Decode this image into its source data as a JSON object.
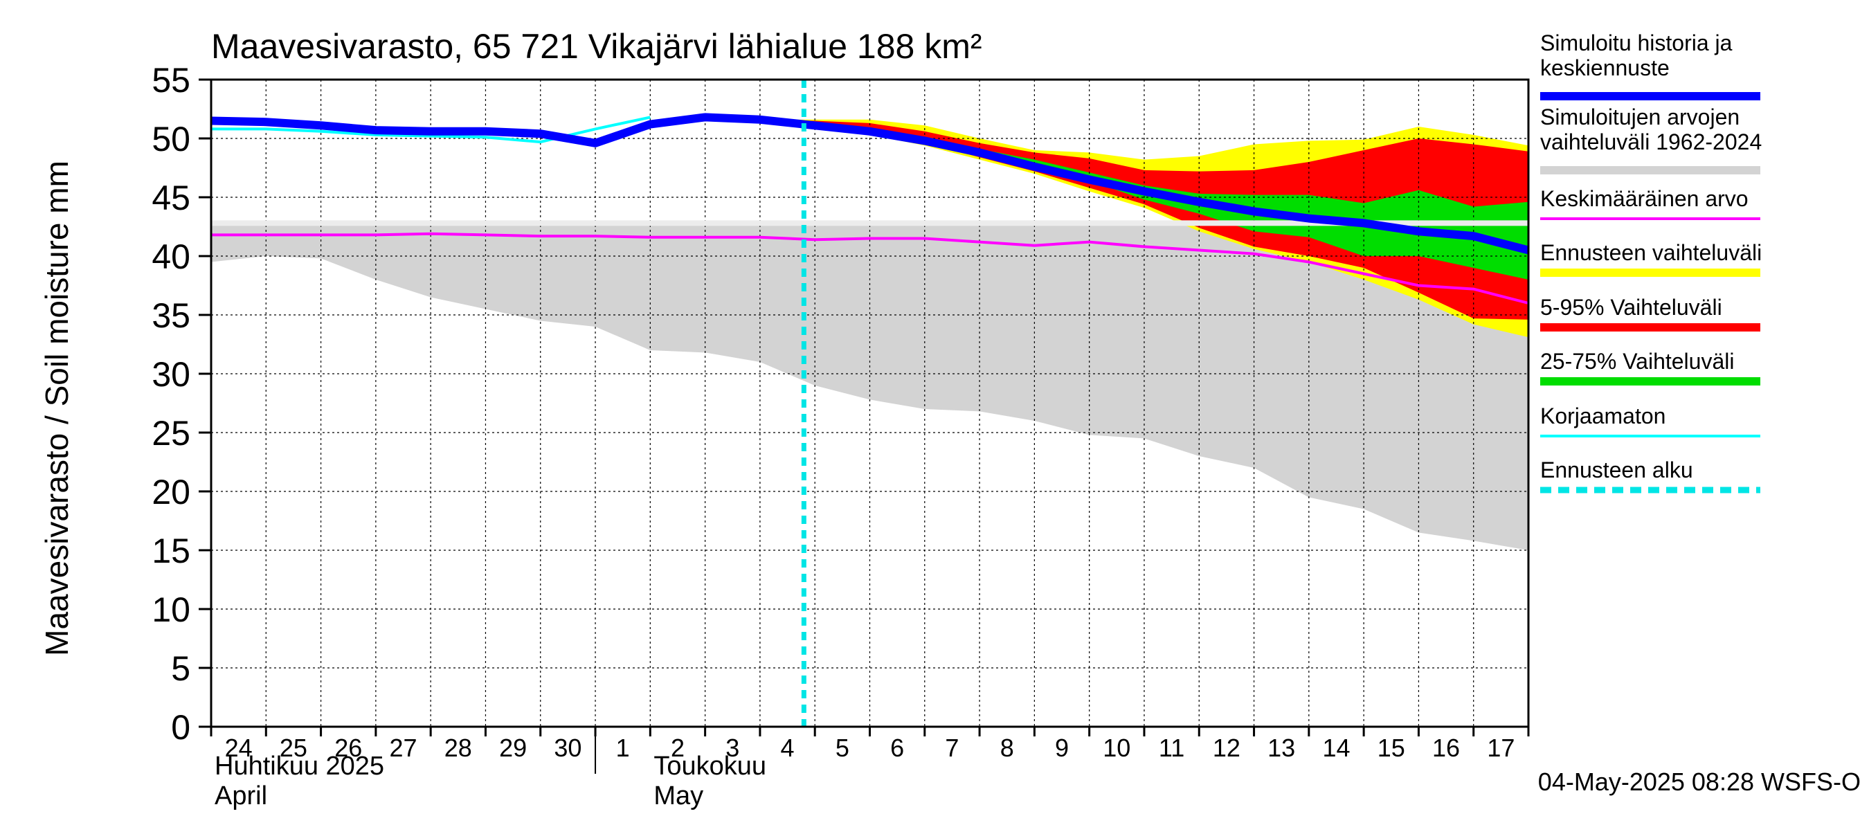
{
  "chart_data": {
    "type": "area",
    "title": "Maavesivarasto, 65 721 Vikajärvi lähialue 188 km²",
    "ylabel": "Maavesivarasto / Soil moisture   mm",
    "ylim": [
      0,
      55
    ],
    "yticks": [
      0,
      5,
      10,
      15,
      20,
      25,
      30,
      35,
      40,
      45,
      50,
      55
    ],
    "grid": true,
    "legend_position": "right",
    "x_day_labels": [
      "24",
      "25",
      "26",
      "27",
      "28",
      "29",
      "30",
      "1",
      "2",
      "3",
      "4",
      "5",
      "6",
      "7",
      "8",
      "9",
      "10",
      "11",
      "12",
      "13",
      "14",
      "15",
      "16",
      "17"
    ],
    "month_labels": [
      {
        "line1": "Huhtikuu  2025",
        "line2": "April"
      },
      {
        "line1": "Toukokuu",
        "line2": "May"
      }
    ],
    "forecast_start_day": 10.8,
    "footer": "04-May-2025 08:28 WSFS-O",
    "colors": {
      "history": "#0000ff",
      "range_1962_2024": "#d3d3d3",
      "mean": "#ff00ff",
      "forecast_range": "#ffff00",
      "p5_95": "#ff0000",
      "p25_75": "#00dd00",
      "uncorrected": "#00ffff",
      "forecast_start": "#00e5e5"
    },
    "legend": [
      {
        "label": "Simuloitu historia ja keskiennuste",
        "line1": "Simuloitu historia ja",
        "line2": "keskiennuste",
        "color": "#0000ff",
        "style": "thick"
      },
      {
        "label": "Simuloitujen arvojen vaihteluväli 1962-2024",
        "line1": "Simuloitujen arvojen",
        "line2": "vaihteluväli 1962-2024",
        "color": "#d3d3d3",
        "style": "thick"
      },
      {
        "label": "Keskimääräinen arvo",
        "line1": "Keskimääräinen arvo",
        "line2": "",
        "color": "#ff00ff",
        "style": "thin"
      },
      {
        "label": "Ennusteen vaihteluväli",
        "line1": "Ennusteen vaihteluväli",
        "line2": "",
        "color": "#ffff00",
        "style": "thick"
      },
      {
        "label": "5-95% Vaihteluväli",
        "line1": "5-95% Vaihteluväli",
        "line2": "",
        "color": "#ff0000",
        "style": "thick"
      },
      {
        "label": "25-75% Vaihteluväli",
        "line1": "25-75% Vaihteluväli",
        "line2": "",
        "color": "#00dd00",
        "style": "thick"
      },
      {
        "label": "Korjaamaton",
        "line1": "Korjaamaton",
        "line2": "",
        "color": "#00ffff",
        "style": "thin"
      },
      {
        "label": "Ennusteen alku",
        "line1": "Ennusteen alku",
        "line2": "",
        "color": "#00e5e5",
        "style": "dashed"
      }
    ],
    "x": [
      0,
      1,
      2,
      3,
      4,
      5,
      6,
      7,
      8,
      9,
      10,
      11,
      12,
      13,
      14,
      15,
      16,
      17,
      18,
      19,
      20,
      21,
      22,
      23,
      24
    ],
    "series": {
      "range_1962_2024_max": [
        42.8,
        42.8,
        42.8,
        42.8,
        42.8,
        42.8,
        42.8,
        42.8,
        42.8,
        42.8,
        42.8,
        42.8,
        42.8,
        42.8,
        42.8,
        42.8,
        42.8,
        42.8,
        42.8,
        42.8,
        42.8,
        42.8,
        42.8,
        42.8,
        42.8
      ],
      "range_1962_2024_min": [
        39.5,
        40,
        39.8,
        38,
        36.5,
        35.5,
        34.5,
        34,
        32,
        31.8,
        31,
        29,
        27.8,
        27,
        26.8,
        26,
        24.8,
        24.5,
        23,
        22,
        19.5,
        18.5,
        16.5,
        15.8,
        15
      ],
      "mean": [
        41.8,
        41.8,
        41.8,
        41.8,
        41.9,
        41.8,
        41.7,
        41.7,
        41.6,
        41.6,
        41.6,
        41.4,
        41.5,
        41.5,
        41.2,
        40.9,
        41.2,
        40.8,
        40.5,
        40.2,
        39.5,
        38.5,
        37.5,
        37.2,
        36
      ],
      "simulated_history": [
        51.5,
        51.4,
        51.1,
        50.7,
        50.6,
        50.6,
        50.4,
        49.6,
        51.2,
        51.8,
        51.6,
        51.1,
        50.6,
        49.8,
        48.8,
        47.6,
        46.5,
        45.5,
        44.6,
        43.8,
        43.2,
        42.8,
        42.1,
        41.7,
        40.5
      ],
      "uncorrected": [
        50.8,
        50.8,
        50.6,
        50.3,
        50.2,
        50.1,
        49.7,
        50.8,
        51.8,
        null,
        null,
        null,
        null,
        null,
        null,
        null,
        null,
        null,
        null,
        null,
        null,
        null,
        null,
        null,
        null
      ],
      "forecast_days": [
        10,
        11,
        12,
        13,
        14,
        15,
        16,
        17,
        18,
        19,
        20,
        21,
        22,
        23,
        24
      ],
      "forecast_max": [
        51.6,
        51.6,
        51.6,
        51.1,
        50,
        49,
        48.8,
        48.2,
        48.5,
        49.5,
        49.8,
        49.9,
        51,
        50.3,
        49.4
      ],
      "forecast_min": [
        51.6,
        51,
        50.3,
        49.4,
        48.2,
        47,
        45.5,
        44.1,
        42.1,
        40.6,
        39.5,
        38,
        36.3,
        34.2,
        33.1
      ],
      "p95": [
        51.6,
        51.5,
        51.3,
        50.6,
        49.6,
        48.8,
        48.3,
        47.3,
        47.2,
        47.3,
        48,
        49,
        50,
        49.5,
        48.9
      ],
      "p5": [
        51.6,
        51.1,
        50.5,
        49.6,
        48.4,
        47.2,
        45.8,
        44.4,
        42.4,
        40.8,
        40,
        39,
        36.9,
        34.7,
        34.6
      ],
      "p75": [
        51.6,
        51.3,
        50.9,
        50.1,
        49.1,
        48.2,
        47.1,
        46,
        45.3,
        45.2,
        45.2,
        44.5,
        45.6,
        44.2,
        44.6
      ],
      "p25": [
        51.6,
        51.2,
        50.7,
        49.9,
        48.8,
        47.6,
        46.4,
        44.8,
        43.6,
        42.1,
        41.6,
        40,
        40,
        39,
        38
      ]
    }
  }
}
